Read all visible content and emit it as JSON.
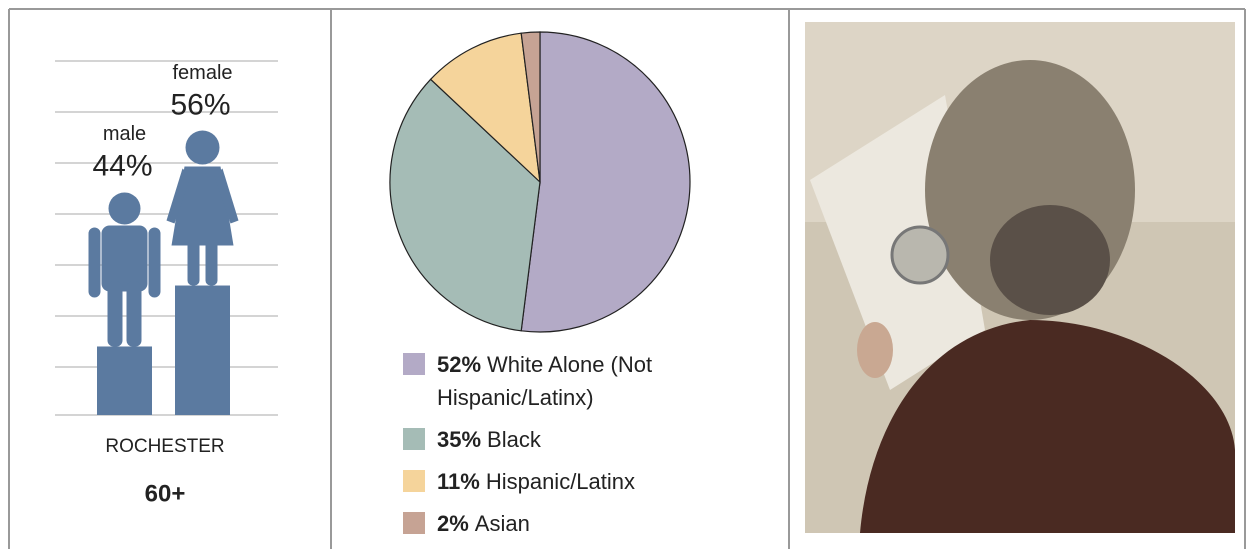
{
  "chart_data": [
    {
      "type": "bar",
      "location": "ROCHESTER",
      "age_group": "60+",
      "categories": [
        "male",
        "female"
      ],
      "values": [
        44,
        56
      ],
      "value_labels": [
        "44%",
        "56%"
      ],
      "color": "#5b7aa0"
    },
    {
      "type": "pie",
      "categories": [
        "White Alone (Not Hispanic/Latinx)",
        "Black",
        "Hispanic/Latinx",
        "Asian"
      ],
      "values": [
        52,
        35,
        11,
        2
      ],
      "value_labels": [
        "52%",
        "35%",
        "11%",
        "2%"
      ],
      "colors": [
        "#b3aac6",
        "#a5bcb6",
        "#f5d49b",
        "#c6a394"
      ]
    }
  ]
}
